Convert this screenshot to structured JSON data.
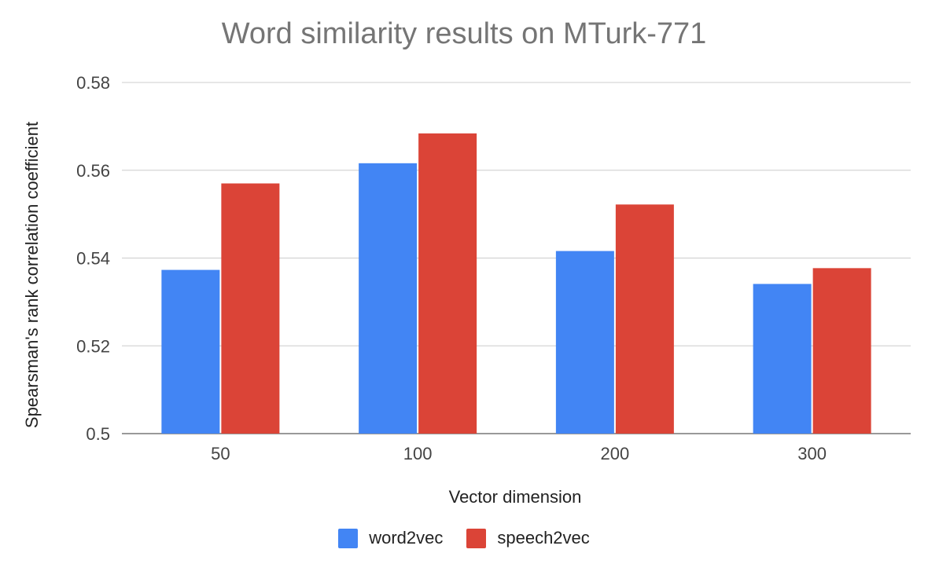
{
  "chart_data": {
    "type": "bar",
    "title": "Word similarity results on MTurk-771",
    "xlabel": "Vector dimension",
    "ylabel": "Spearsman's rank correlation coefficient",
    "categories": [
      "50",
      "100",
      "200",
      "300"
    ],
    "series": [
      {
        "name": "word2vec",
        "color": "#4285f4",
        "values": [
          0.5373,
          0.5616,
          0.5416,
          0.5341
        ]
      },
      {
        "name": "speech2vec",
        "color": "#db4437",
        "values": [
          0.557,
          0.5684,
          0.5522,
          0.5377
        ]
      }
    ],
    "ylim": [
      0.5,
      0.58
    ],
    "yticks": [
      "0.5",
      "0.52",
      "0.54",
      "0.56",
      "0.58"
    ],
    "grid": true,
    "legend_position": "bottom"
  }
}
